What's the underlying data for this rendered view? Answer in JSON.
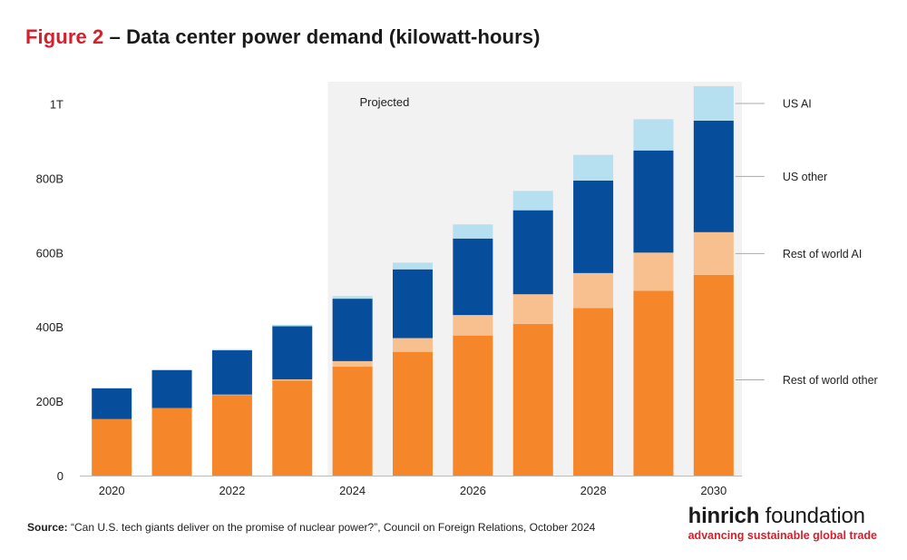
{
  "title": {
    "figure_label": "Figure 2",
    "text": " – Data center power demand (kilowatt-hours)"
  },
  "source": {
    "label": "Source:",
    "text": " “Can U.S. tech giants deliver on the promise of nuclear power?”, Council on Foreign Relations, October 2024"
  },
  "brand": {
    "name_bold": "hinrich",
    "name_rest": " foundation",
    "tagline": "advancing sustainable global trade"
  },
  "colors": {
    "rest_of_world_other": "#f5862a",
    "rest_of_world_ai": "#f8c08e",
    "us_other": "#064d9b",
    "us_ai": "#b6dff0",
    "projected_band": "#f2f2f2",
    "title_accent": "#d6202c"
  },
  "chart_data": {
    "type": "bar",
    "stacked": true,
    "categories": [
      "2020",
      "2021",
      "2022",
      "2023",
      "2024",
      "2025",
      "2026",
      "2027",
      "2028",
      "2029",
      "2030"
    ],
    "x_tick_labels": [
      "2020",
      "",
      "2022",
      "",
      "2024",
      "",
      "2026",
      "",
      "2028",
      "",
      "2030"
    ],
    "y_ticks": [
      0,
      200,
      400,
      600,
      800,
      1000
    ],
    "y_tick_labels": [
      "0",
      "200B",
      "400B",
      "600B",
      "800B",
      "1T"
    ],
    "y_unit": "billion kWh",
    "ylim": [
      0,
      1060
    ],
    "projected_label": "Projected",
    "projected_from": "2024",
    "series": [
      {
        "name": "Rest of world other",
        "color": "#f5862a",
        "values": [
          152,
          182,
          217,
          256,
          293,
          333,
          377,
          408,
          451,
          497,
          540
        ]
      },
      {
        "name": "Rest of world AI",
        "color": "#f8c08e",
        "values": [
          0,
          0,
          1,
          3,
          15,
          37,
          55,
          80,
          94,
          103,
          115
        ]
      },
      {
        "name": "US other",
        "color": "#064d9b",
        "values": [
          83,
          102,
          119,
          143,
          168,
          185,
          206,
          226,
          249,
          275,
          300
        ]
      },
      {
        "name": "US AI",
        "color": "#b6dff0",
        "values": [
          1,
          1,
          3,
          4,
          7,
          18,
          38,
          52,
          69,
          84,
          93
        ]
      }
    ],
    "legend_position": "right, inline labels",
    "grid": false
  }
}
